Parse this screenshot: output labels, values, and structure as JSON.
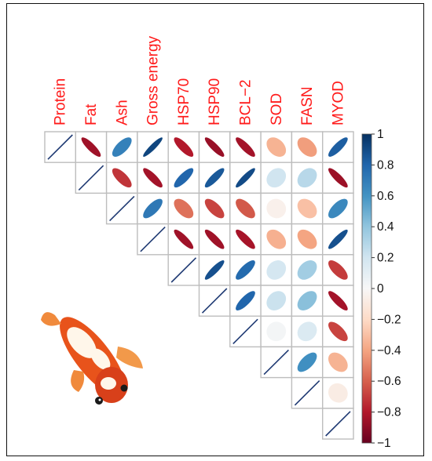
{
  "chart_data": {
    "type": "heatmap",
    "style": "upper-triangular correlation plot, ellipse glyphs",
    "variables": [
      "Protein",
      "Fat",
      "Ash",
      "Gross energy",
      "HSP70",
      "HSP90",
      "BCL−2",
      "SOD",
      "FASN",
      "MYOD"
    ],
    "label_color": "#ff1a1a",
    "matrix": [
      [
        1.0,
        -0.85,
        0.68,
        0.92,
        -0.8,
        -0.87,
        -0.84,
        -0.35,
        -0.42,
        0.83
      ],
      [
        null,
        1.0,
        -0.72,
        -0.84,
        0.8,
        0.85,
        0.9,
        0.2,
        0.28,
        -0.86
      ],
      [
        null,
        null,
        1.0,
        0.72,
        -0.55,
        -0.68,
        -0.62,
        -0.05,
        -0.3,
        0.65
      ],
      [
        null,
        null,
        null,
        1.0,
        -0.85,
        -0.85,
        -0.83,
        -0.36,
        -0.4,
        0.88
      ],
      [
        null,
        null,
        null,
        null,
        1.0,
        0.88,
        0.78,
        0.18,
        0.35,
        -0.7
      ],
      [
        null,
        null,
        null,
        null,
        null,
        1.0,
        0.8,
        0.22,
        0.42,
        -0.84
      ],
      [
        null,
        null,
        null,
        null,
        null,
        null,
        1.0,
        0.02,
        0.15,
        -0.68
      ],
      [
        null,
        null,
        null,
        null,
        null,
        null,
        null,
        1.0,
        0.62,
        -0.35
      ],
      [
        null,
        null,
        null,
        null,
        null,
        null,
        null,
        null,
        1.0,
        -0.08
      ],
      [
        null,
        null,
        null,
        null,
        null,
        null,
        null,
        null,
        null,
        1.0
      ]
    ],
    "colorbar": {
      "range": [
        -1,
        1
      ],
      "ticks": [
        "1",
        "0.8",
        "0.6",
        "0.4",
        "0.2",
        "0",
        "−0.2",
        "−0.4",
        "−0.6",
        "−0.8",
        "−1"
      ],
      "colors": {
        "neg": "#67001f",
        "mid": "#ffffff",
        "pos": "#053061"
      }
    }
  },
  "illustration": "koi-fish"
}
